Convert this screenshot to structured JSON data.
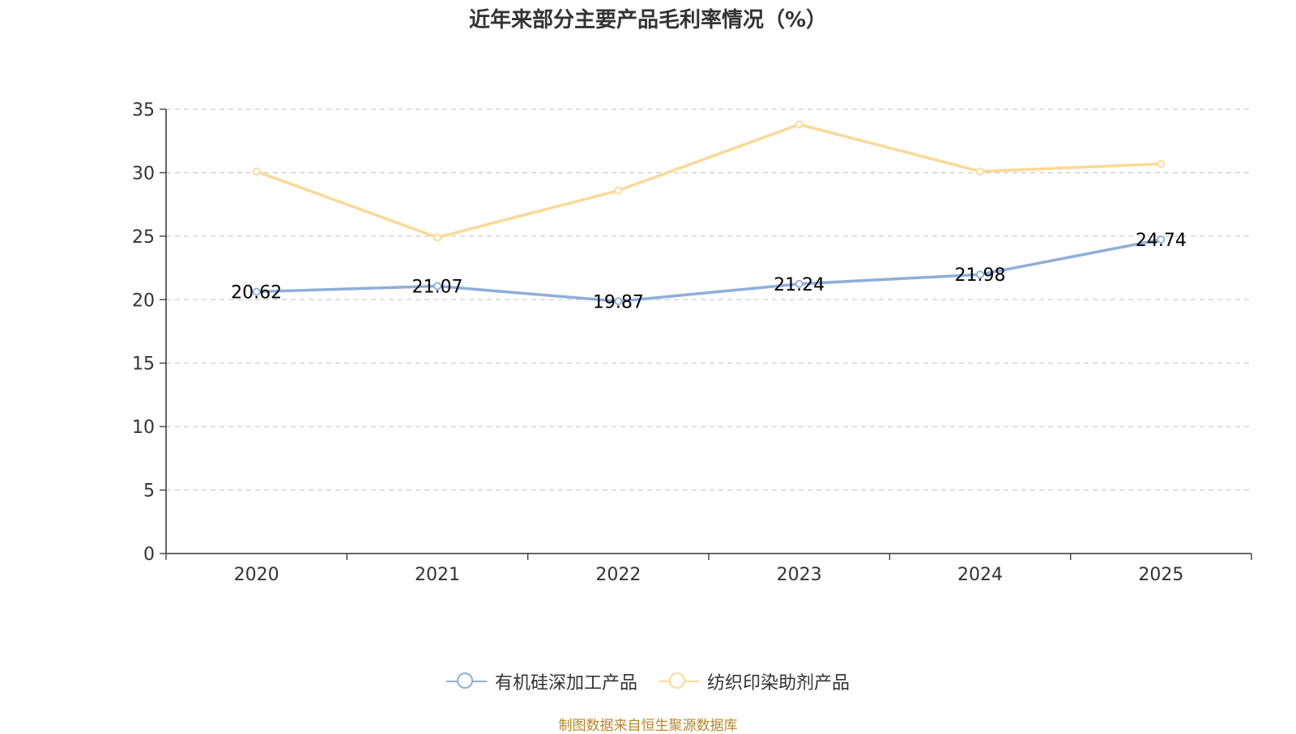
{
  "colors": {
    "series1": "#8eaedb",
    "series2": "#fbd995",
    "grid": "#cccccc",
    "axis": "#333333",
    "source": "#b8862b"
  },
  "chart_data": {
    "type": "line",
    "title": "近年来部分主要产品毛利率情况（%）",
    "categories": [
      "2020",
      "2021",
      "2022",
      "2023",
      "2024",
      "2025"
    ],
    "ylim": [
      0,
      35
    ],
    "yticks": [
      0,
      5,
      10,
      15,
      20,
      25,
      30,
      35
    ],
    "grid": true,
    "legend_position": "bottom-center",
    "series": [
      {
        "name": "有机硅深加工产品",
        "values": [
          20.62,
          21.07,
          19.87,
          21.24,
          21.98,
          24.74
        ],
        "show_labels": true,
        "color": "#8eaedb"
      },
      {
        "name": "纺织印染助剂产品",
        "values": [
          30.1,
          24.9,
          28.6,
          33.8,
          30.1,
          30.7
        ],
        "show_labels": false,
        "color": "#fbd995"
      }
    ]
  },
  "source": "制图数据来自恒生聚源数据库"
}
